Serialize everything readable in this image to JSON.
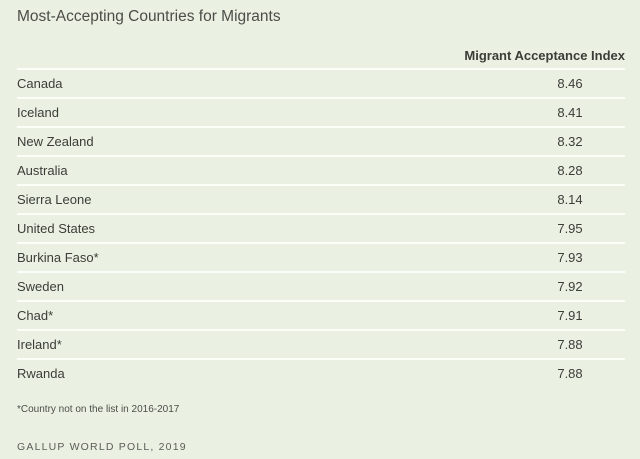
{
  "chart_data": {
    "type": "table",
    "title": "Most-Accepting Countries for Migrants",
    "columns": [
      "",
      "Migrant Acceptance Index"
    ],
    "rows": [
      {
        "country": "Canada",
        "value": "8.46"
      },
      {
        "country": "Iceland",
        "value": "8.41"
      },
      {
        "country": "New Zealand",
        "value": "8.32"
      },
      {
        "country": "Australia",
        "value": "8.28"
      },
      {
        "country": "Sierra Leone",
        "value": "8.14"
      },
      {
        "country": "United States",
        "value": "7.95"
      },
      {
        "country": "Burkina Faso*",
        "value": "7.93"
      },
      {
        "country": "Sweden",
        "value": "7.92"
      },
      {
        "country": "Chad*",
        "value": "7.91"
      },
      {
        "country": "Ireland*",
        "value": "7.88"
      },
      {
        "country": "Rwanda",
        "value": "7.88"
      }
    ],
    "footnote": "*Country not on the list in 2016-2017",
    "source": "GALLUP WORLD POLL, 2019"
  },
  "colors": {
    "background": "#ebf1e2",
    "divider": "#fbfdf8",
    "text": "#3a3d38"
  }
}
